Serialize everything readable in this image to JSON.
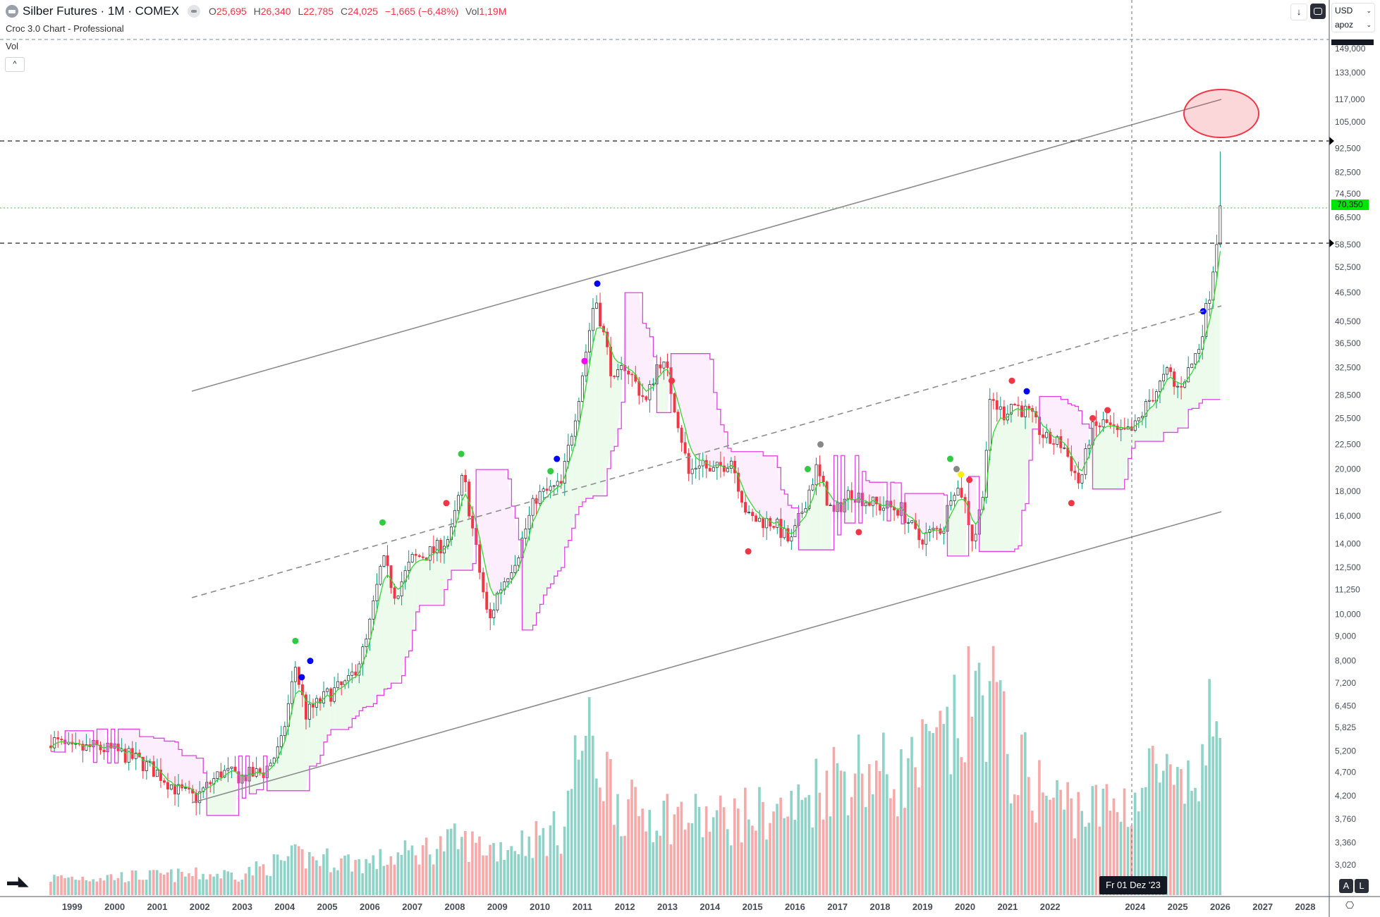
{
  "header": {
    "title": "Silber Futures · 1M · COMEX",
    "o_label": "O",
    "o": "25,695",
    "h_label": "H",
    "h": "26,340",
    "l_label": "L",
    "l": "22,785",
    "c_label": "C",
    "c": "24,025",
    "change": "−1,665 (−6,48%)",
    "vol_label": "Vol",
    "vol": "1,19M",
    "indicator": "Croc 3.0 Chart - Professional",
    "volume_pane": "Vol",
    "collapse": "^"
  },
  "toolbar": {
    "down_arrow": "↓",
    "currency": "USD",
    "unit": "apoz",
    "chevron": "⌄"
  },
  "last_price": "70,350",
  "crosshair_date": "Fr 01 Dez '23",
  "scale_buttons": {
    "auto": "A",
    "log": "L"
  },
  "logo": "TV",
  "colors": {
    "up": "#089981",
    "down": "#f23645",
    "vol_up": "#8fd3c8",
    "vol_down": "#f7a8a8",
    "fast": "#33d633",
    "slow": "#e040e0",
    "last": "#00e600"
  },
  "chart_data": {
    "type": "candlestick",
    "title": "Silber Futures · 1M · COMEX",
    "scale": "log",
    "ylim": [
      2900,
      160000
    ],
    "xlim": [
      1998.0,
      2028.6
    ],
    "y_ticks": [
      "149,000",
      "133,000",
      "117,000",
      "105,000",
      "92,500",
      "82,500",
      "74,500",
      "66,500",
      "58,500",
      "52,500",
      "46,500",
      "40,500",
      "36,500",
      "32,500",
      "28,500",
      "25,500",
      "22,500",
      "20,000",
      "18,000",
      "16,000",
      "14,000",
      "12,500",
      "11,250",
      "10,000",
      "9,000",
      "8,000",
      "7,200",
      "6,450",
      "5,825",
      "5,200",
      "4,700",
      "4,200",
      "3,760",
      "3,360",
      "3,020"
    ],
    "x_ticks": [
      "1999",
      "2000",
      "2001",
      "2002",
      "2003",
      "2004",
      "2005",
      "2006",
      "2007",
      "2008",
      "2009",
      "2010",
      "2011",
      "2012",
      "2013",
      "2014",
      "2015",
      "2016",
      "2017",
      "2018",
      "2019",
      "2020",
      "2021",
      "2022",
      "2024",
      "2025",
      "2026",
      "2027",
      "2028"
    ],
    "close_anchors": [
      [
        1998.5,
        5500
      ],
      [
        1999.0,
        5200
      ],
      [
        1999.5,
        5300
      ],
      [
        2000.0,
        5200
      ],
      [
        2000.5,
        5000
      ],
      [
        2001.0,
        4700
      ],
      [
        2001.5,
        4300
      ],
      [
        2001.9,
        4150
      ],
      [
        2002.5,
        4700
      ],
      [
        2003.0,
        4600
      ],
      [
        2003.5,
        4700
      ],
      [
        2003.9,
        5300
      ],
      [
        2004.25,
        7800
      ],
      [
        2004.5,
        6200
      ],
      [
        2005.0,
        6800
      ],
      [
        2005.5,
        7200
      ],
      [
        2005.9,
        8600
      ],
      [
        2006.3,
        13000
      ],
      [
        2006.6,
        11000
      ],
      [
        2007.0,
        13000
      ],
      [
        2007.5,
        13500
      ],
      [
        2007.9,
        14500
      ],
      [
        2008.2,
        19500
      ],
      [
        2008.6,
        12000
      ],
      [
        2008.8,
        9500
      ],
      [
        2009.0,
        11000
      ],
      [
        2009.5,
        13500
      ],
      [
        2009.9,
        17500
      ],
      [
        2010.5,
        18500
      ],
      [
        2010.9,
        28000
      ],
      [
        2011.3,
        46000
      ],
      [
        2011.5,
        38000
      ],
      [
        2011.75,
        30000
      ],
      [
        2012.0,
        33000
      ],
      [
        2012.5,
        27500
      ],
      [
        2012.8,
        34000
      ],
      [
        2013.0,
        31500
      ],
      [
        2013.3,
        24000
      ],
      [
        2013.5,
        19500
      ],
      [
        2013.8,
        21000
      ],
      [
        2014.0,
        19500
      ],
      [
        2014.5,
        21000
      ],
      [
        2014.9,
        15800
      ],
      [
        2015.5,
        15500
      ],
      [
        2015.9,
        14000
      ],
      [
        2016.5,
        20000
      ],
      [
        2016.9,
        16000
      ],
      [
        2017.3,
        18000
      ],
      [
        2017.9,
        16800
      ],
      [
        2018.5,
        16500
      ],
      [
        2018.9,
        14300
      ],
      [
        2019.5,
        15200
      ],
      [
        2019.7,
        18500
      ],
      [
        2019.95,
        17800
      ],
      [
        2020.2,
        14000
      ],
      [
        2020.4,
        17500
      ],
      [
        2020.6,
        28000
      ],
      [
        2020.9,
        26000
      ],
      [
        2021.1,
        27500
      ],
      [
        2021.5,
        26000
      ],
      [
        2021.9,
        23000
      ],
      [
        2022.3,
        22500
      ],
      [
        2022.7,
        18500
      ],
      [
        2022.95,
        24000
      ],
      [
        2023.3,
        25000
      ],
      [
        2023.6,
        23500
      ],
      [
        2023.95,
        24000
      ],
      [
        2024.3,
        27500
      ],
      [
        2024.8,
        32000
      ],
      [
        2024.95,
        29000
      ],
      [
        2025.3,
        32500
      ],
      [
        2025.5,
        36000
      ],
      [
        2025.75,
        46500
      ],
      [
        2025.9,
        58000
      ],
      [
        2026.0,
        70350
      ]
    ],
    "last_high": 91200,
    "volume_anchors": [
      [
        1998.5,
        8
      ],
      [
        2003.0,
        10
      ],
      [
        2004.3,
        18
      ],
      [
        2006.0,
        15
      ],
      [
        2008.0,
        25
      ],
      [
        2009.0,
        22
      ],
      [
        2010.5,
        30
      ],
      [
        2011.0,
        75
      ],
      [
        2011.5,
        60
      ],
      [
        2012.0,
        40
      ],
      [
        2013.0,
        38
      ],
      [
        2014.0,
        35
      ],
      [
        2015.0,
        38
      ],
      [
        2016.0,
        40
      ],
      [
        2016.7,
        55
      ],
      [
        2017.5,
        60
      ],
      [
        2018.5,
        55
      ],
      [
        2019.5,
        70
      ],
      [
        2019.9,
        80
      ],
      [
        2020.2,
        90
      ],
      [
        2020.6,
        100
      ],
      [
        2021.0,
        65
      ],
      [
        2022.0,
        45
      ],
      [
        2023.0,
        40
      ],
      [
        2024.0,
        45
      ],
      [
        2024.5,
        60
      ],
      [
        2025.0,
        45
      ],
      [
        2025.5,
        55
      ],
      [
        2025.95,
        90
      ]
    ],
    "levels": {
      "upper_dashed": 95000,
      "lower_dashed": 58500,
      "last": 70350
    },
    "signals": [
      [
        2004.25,
        8800,
        "#2ecc40"
      ],
      [
        2004.6,
        8000,
        "#0000ff"
      ],
      [
        2004.4,
        7400,
        "#0000ff"
      ],
      [
        2006.3,
        15500,
        "#2ecc40"
      ],
      [
        2008.15,
        21500,
        "#2ecc40"
      ],
      [
        2007.8,
        17000,
        "#f23645"
      ],
      [
        2010.25,
        19800,
        "#2ecc40"
      ],
      [
        2010.4,
        21000,
        "#0000ff"
      ],
      [
        2011.05,
        33500,
        "#ff00ff"
      ],
      [
        2011.35,
        48500,
        "#0000ff"
      ],
      [
        2013.1,
        30500,
        "#f23645"
      ],
      [
        2014.9,
        13500,
        "#f23645"
      ],
      [
        2016.3,
        20000,
        "#2ecc40"
      ],
      [
        2017.5,
        14800,
        "#f23645"
      ],
      [
        2019.65,
        21000,
        "#2ecc40"
      ],
      [
        2019.9,
        19500,
        "#ffee00"
      ],
      [
        2020.1,
        19000,
        "#f23645"
      ],
      [
        2021.1,
        30500,
        "#f23645"
      ],
      [
        2021.45,
        29000,
        "#0000ff"
      ],
      [
        2022.5,
        17000,
        "#f23645"
      ],
      [
        2023.0,
        25500,
        "#f23645"
      ],
      [
        2023.35,
        26500,
        "#f23645"
      ],
      [
        2025.6,
        42500,
        "#0000ff"
      ],
      [
        2016.6,
        22500,
        "#888888"
      ],
      [
        2019.8,
        20000,
        "#888888"
      ]
    ]
  }
}
